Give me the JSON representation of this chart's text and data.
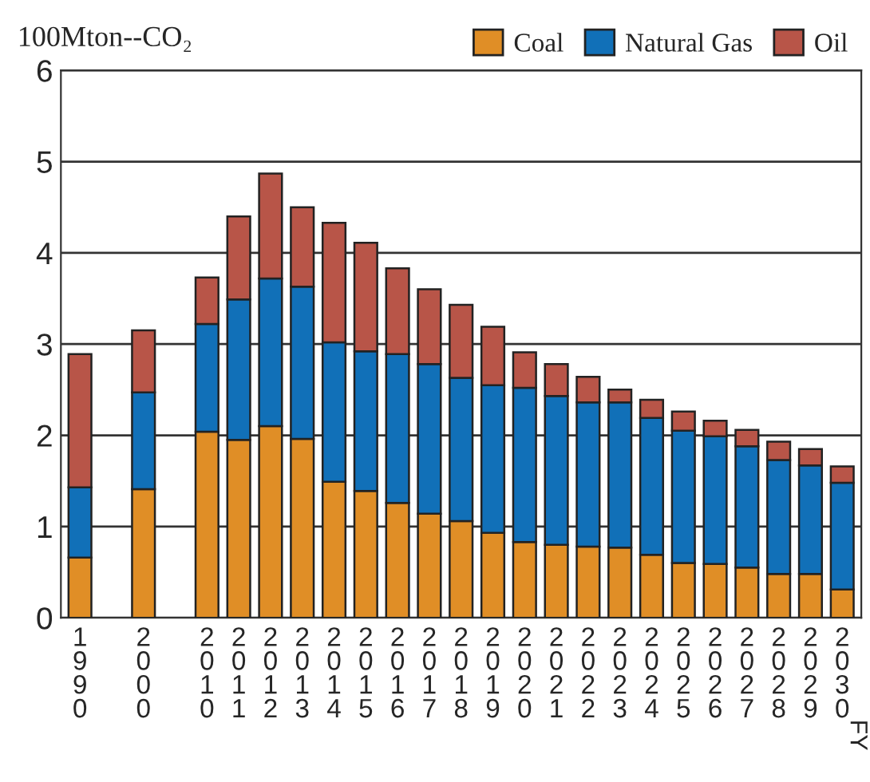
{
  "chart_data": {
    "type": "bar",
    "stacked": true,
    "ylabel": "100Mton--CO₂",
    "annotations": [
      "FY"
    ],
    "categories": [
      "1990",
      null,
      "2000",
      null,
      "2010",
      "2011",
      "2012",
      "2013",
      "2014",
      "2015",
      "2016",
      "2017",
      "2018",
      "2019",
      "2020",
      "2021",
      "2022",
      "2023",
      "2024",
      "2025",
      "2026",
      "2027",
      "2028",
      "2029",
      "2030"
    ],
    "series": [
      {
        "name": "Coal",
        "color": "#e08e26",
        "values": [
          0.66,
          null,
          1.41,
          null,
          2.04,
          1.95,
          2.1,
          1.96,
          1.49,
          1.39,
          1.26,
          1.14,
          1.06,
          0.93,
          0.83,
          0.8,
          0.78,
          0.77,
          0.69,
          0.6,
          0.59,
          0.55,
          0.48,
          0.48,
          0.31
        ]
      },
      {
        "name": "Natural Gas",
        "color": "#1170b8",
        "values": [
          0.77,
          null,
          1.06,
          null,
          1.18,
          1.54,
          1.62,
          1.67,
          1.53,
          1.53,
          1.63,
          1.64,
          1.57,
          1.62,
          1.69,
          1.63,
          1.58,
          1.59,
          1.5,
          1.45,
          1.4,
          1.33,
          1.25,
          1.19,
          1.17
        ]
      },
      {
        "name": "Oil",
        "color": "#b85548",
        "values": [
          1.46,
          null,
          0.68,
          null,
          0.51,
          0.91,
          1.15,
          0.87,
          1.31,
          1.19,
          0.94,
          0.82,
          0.8,
          0.64,
          0.39,
          0.35,
          0.28,
          0.14,
          0.2,
          0.21,
          0.17,
          0.18,
          0.2,
          0.18,
          0.18
        ]
      }
    ],
    "ylim": [
      0,
      6
    ],
    "yticks": [
      0,
      1,
      2,
      3,
      4,
      5,
      6
    ],
    "grid": "y",
    "legend": "top right"
  }
}
